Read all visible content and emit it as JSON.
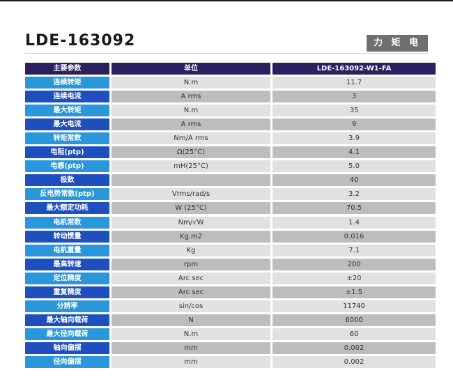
{
  "title": "LDE-163092",
  "badge": "力 矩 电 机",
  "table": {
    "headers": [
      "主要参数",
      "单位",
      "LDE-163092-W1-FA"
    ],
    "rows": [
      {
        "param": "连续转矩",
        "unit": "N.m",
        "value": "11.7"
      },
      {
        "param": "连续电流",
        "unit": "A rms",
        "value": "3"
      },
      {
        "param": "最大转矩",
        "unit": "N.m",
        "value": "35"
      },
      {
        "param": "最大电流",
        "unit": "A rms",
        "value": "9"
      },
      {
        "param": "转矩常数",
        "unit": "Nm/A rms",
        "value": "3.9"
      },
      {
        "param": "电阻(ptp)",
        "unit": "Ω(25°C)",
        "value": "4.1"
      },
      {
        "param": "电感(ptp)",
        "unit": "mH(25°C)",
        "value": "5.0"
      },
      {
        "param": "极数",
        "unit": "",
        "value": "40"
      },
      {
        "param": "反电势常数(ptp)",
        "unit": "Vrms/rad/s",
        "value": "3.2"
      },
      {
        "param": "最大额定功耗",
        "unit": "W (25°C)",
        "value": "70.5"
      },
      {
        "param": "电机常数",
        "unit": "Nm/√W",
        "value": "1.4"
      },
      {
        "param": "转动惯量",
        "unit": "Kg.m2",
        "value": "0.016"
      },
      {
        "param": "电机重量",
        "unit": "Kg",
        "value": "7.1"
      },
      {
        "param": "最高转速",
        "unit": "rpm",
        "value": "200"
      },
      {
        "param": "定位精度",
        "unit": "Arc sec",
        "value": "±20"
      },
      {
        "param": "重复精度",
        "unit": "Arc sec",
        "value": "±1.5"
      },
      {
        "param": "分辨率",
        "unit": "sin/cos",
        "value": "11740"
      },
      {
        "param": "最大轴向载荷",
        "unit": "N",
        "value": "6000"
      },
      {
        "param": "最大径向载荷",
        "unit": "N.m",
        "value": "60"
      },
      {
        "param": "轴向偏摆",
        "unit": "mm",
        "value": "0.002"
      },
      {
        "param": "径向偏摆",
        "unit": "mm",
        "value": "0.002"
      }
    ]
  },
  "colors": {
    "header_bg": "#2a2060",
    "label_light": "#2a97dd",
    "label_dark": "#1e4fbf",
    "value_light": "#e1e1e1",
    "value_dark": "#bdbdbd",
    "badge_bg": "#6f6f6f"
  }
}
